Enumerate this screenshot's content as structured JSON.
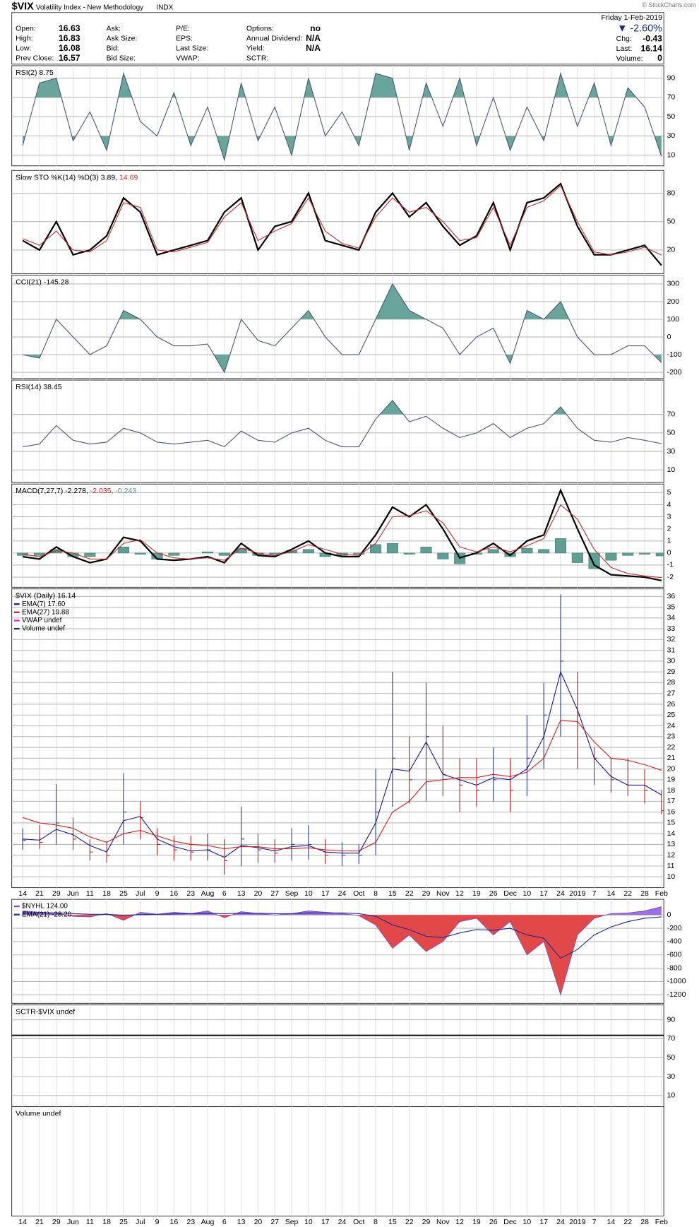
{
  "header": {
    "title": "$VIX",
    "subtitle": "Volatility Index - New Methodology",
    "exchange": "INDX",
    "watermark": "© StockCharts.com",
    "date": "Friday  1-Feb-2019",
    "change_pct": "▼ -2.60%",
    "columns": [
      [
        {
          "label": "Open:",
          "value": "16.63"
        },
        {
          "label": "High:",
          "value": "16.83"
        },
        {
          "label": "Low:",
          "value": "16.08"
        },
        {
          "label": "Prev Close:",
          "value": "16.57"
        }
      ],
      [
        {
          "label": "Ask:"
        },
        {
          "label": "Ask Size:"
        },
        {
          "label": "Bid:"
        },
        {
          "label": "Bid Size:"
        }
      ],
      [
        {
          "label": "P/E:"
        },
        {
          "label": "EPS:"
        },
        {
          "label": "Last Size:"
        },
        {
          "label": "VWAP:"
        }
      ],
      [
        {
          "label": "Options:",
          "value": "no"
        },
        {
          "label": "Annual Dividend:",
          "value": "N/A"
        },
        {
          "label": "Yield:",
          "value": "N/A"
        },
        {
          "label": "SCTR:"
        }
      ]
    ],
    "right": [
      {
        "label": "Chg:",
        "value": "-0.43"
      },
      {
        "label": "Last:",
        "value": "16.14"
      },
      {
        "label": "Volume:",
        "value": "0"
      }
    ]
  },
  "chart_data": [
    {
      "type": "line",
      "label_parts": [
        {
          "text": "RSI(2) 8.75",
          "color": "#000000"
        }
      ],
      "ylim": [
        -1,
        103
      ],
      "yticks": [
        10,
        30,
        50,
        70,
        90
      ],
      "grid": true,
      "fill_levels": [
        30,
        70
      ],
      "fill_color": "#6aa59c",
      "series": [
        {
          "color": "#4a5878",
          "values": [
            20,
            85,
            90,
            25,
            55,
            15,
            95,
            45,
            30,
            75,
            20,
            60,
            5,
            85,
            25,
            60,
            10,
            90,
            30,
            55,
            20,
            95,
            90,
            15,
            85,
            40,
            90,
            20,
            70,
            15,
            60,
            25,
            95,
            40,
            85,
            20,
            80,
            60,
            8.75
          ]
        }
      ]
    },
    {
      "type": "line",
      "label_parts": [
        {
          "text": "Slow STO %K(14) %D(3) 3.89,",
          "color": "#000000"
        },
        {
          "text": "14.69",
          "color": "#c03030"
        }
      ],
      "ylim": [
        -5,
        104
      ],
      "yticks": [
        20,
        50,
        80
      ],
      "grid": true,
      "series": [
        {
          "color": "#000000",
          "width": 2,
          "values": [
            30,
            20,
            50,
            15,
            20,
            35,
            75,
            60,
            15,
            20,
            25,
            30,
            60,
            75,
            20,
            45,
            50,
            80,
            30,
            25,
            20,
            60,
            80,
            55,
            70,
            45,
            25,
            35,
            70,
            20,
            70,
            75,
            90,
            45,
            15,
            15,
            20,
            25,
            3.89
          ]
        },
        {
          "color": "#c03030",
          "width": 1,
          "values": [
            32,
            25,
            40,
            20,
            18,
            30,
            70,
            65,
            20,
            18,
            23,
            28,
            55,
            70,
            30,
            40,
            48,
            75,
            40,
            27,
            22,
            55,
            75,
            60,
            65,
            50,
            30,
            33,
            65,
            25,
            65,
            72,
            88,
            50,
            18,
            15,
            18,
            23,
            14.69
          ]
        }
      ]
    },
    {
      "type": "line",
      "label_parts": [
        {
          "text": "CCI(21) -145.28",
          "color": "#000000"
        }
      ],
      "ylim": [
        -235,
        349
      ],
      "yticks": [
        -200,
        -100,
        0,
        100,
        200,
        300
      ],
      "grid": true,
      "fill_levels": [
        -100,
        100
      ],
      "fill_color": "#6aa59c",
      "series": [
        {
          "color": "#4a5878",
          "values": [
            -100,
            -120,
            100,
            0,
            -100,
            -50,
            150,
            100,
            0,
            -50,
            -50,
            -40,
            -200,
            100,
            -20,
            -50,
            50,
            150,
            0,
            -100,
            -100,
            100,
            300,
            150,
            100,
            50,
            -100,
            0,
            50,
            -150,
            150,
            100,
            200,
            0,
            -100,
            -100,
            -50,
            -50,
            -145.28
          ]
        }
      ]
    },
    {
      "type": "line",
      "label_parts": [
        {
          "text": "RSI(14) 38.45",
          "color": "#000000"
        }
      ],
      "ylim": [
        -3.5,
        107
      ],
      "yticks": [
        10,
        30,
        50,
        70
      ],
      "grid": true,
      "fill_levels": [
        30,
        70
      ],
      "fill_color": "#6aa59c",
      "series": [
        {
          "color": "#4a5878",
          "values": [
            35,
            38,
            58,
            42,
            38,
            40,
            55,
            50,
            40,
            38,
            40,
            42,
            35,
            52,
            42,
            40,
            50,
            55,
            42,
            35,
            35,
            65,
            85,
            62,
            68,
            55,
            45,
            50,
            60,
            45,
            55,
            60,
            78,
            55,
            42,
            40,
            45,
            42,
            38.45
          ]
        }
      ]
    },
    {
      "type": "line",
      "label_parts": [
        {
          "text": "MACD(7,27,7) -2.278,",
          "color": "#000000"
        },
        {
          "text": "-2.035,",
          "color": "#c03030"
        },
        {
          "text": "-0.243",
          "color": "#4f9a8f"
        }
      ],
      "ylim": [
        -2.84,
        5.71
      ],
      "yticks": [
        -2,
        -1,
        0,
        1,
        2,
        3,
        4,
        5
      ],
      "grid": true,
      "series": [
        {
          "kind": "bar",
          "color": "#5f9e94",
          "values": [
            -0.2,
            -0.2,
            0.3,
            -0.3,
            -0.3,
            0,
            0.5,
            -0.1,
            -0.5,
            -0.2,
            0,
            0.1,
            -0.2,
            0.4,
            -0.2,
            -0.1,
            0.2,
            0.3,
            -0.3,
            -0.2,
            -0.1,
            0.7,
            0.8,
            -0.1,
            0.5,
            -0.5,
            -0.9,
            -0.1,
            0.3,
            -0.3,
            0.4,
            0.3,
            1.2,
            -0.8,
            -1.3,
            -0.6,
            -0.2,
            -0.1,
            -0.243
          ]
        },
        {
          "color": "#000000",
          "width": 2,
          "values": [
            -0.3,
            -0.5,
            0.5,
            -0.3,
            -0.8,
            -0.5,
            1.3,
            1,
            -0.5,
            -0.6,
            -0.5,
            -0.3,
            -0.8,
            0.8,
            -0.2,
            -0.3,
            0.3,
            1,
            0,
            -0.3,
            -0.3,
            1.5,
            3.8,
            3,
            4,
            2,
            -0.4,
            0,
            0.8,
            -0.2,
            1,
            1.5,
            5.2,
            2,
            -1,
            -1.8,
            -1.9,
            -2,
            -2.278
          ]
        },
        {
          "color": "#c03030",
          "width": 1,
          "values": [
            -0.1,
            -0.3,
            0.2,
            0,
            -0.5,
            -0.5,
            0.8,
            1.1,
            0,
            -0.4,
            -0.5,
            -0.4,
            -0.6,
            0.4,
            0,
            -0.2,
            0.1,
            0.7,
            0.3,
            -0.1,
            -0.2,
            0.8,
            3,
            3.1,
            3.5,
            2.5,
            0.5,
            0.1,
            0.5,
            0.1,
            0.6,
            1.2,
            4,
            2.8,
            0.3,
            -1.2,
            -1.7,
            -1.9,
            -2.035
          ]
        }
      ]
    },
    {
      "type": "ohlc",
      "label_parts": [
        {
          "text": "$VIX (Daily) 16.14",
          "color": "#000000"
        }
      ],
      "ylim": [
        9,
        36.7
      ],
      "yticks": [
        10,
        11,
        12,
        13,
        14,
        15,
        16,
        17,
        18,
        19,
        20,
        21,
        22,
        23,
        24,
        25,
        26,
        27,
        28,
        29,
        30,
        31,
        32,
        33,
        34,
        35,
        36
      ],
      "grid": true,
      "up_color": "#2a3f9a",
      "down_color": "#c02424",
      "categories": [
        "14",
        "21",
        "29",
        "Jun",
        "11",
        "18",
        "25",
        "Jul",
        "9",
        "16",
        "23",
        "Aug",
        "6",
        "13",
        "20",
        "27",
        "Sep",
        "10",
        "17",
        "24",
        "Oct",
        "8",
        "15",
        "22",
        "29",
        "Nov",
        "12",
        "19",
        "26",
        "Dec",
        "10",
        "17",
        "24",
        "2019",
        "7",
        "14",
        "22",
        "28",
        "Feb"
      ],
      "high": [
        14.5,
        14.8,
        18.6,
        15.5,
        13.5,
        13.3,
        19.6,
        17,
        14.5,
        13.8,
        13.8,
        14,
        13.5,
        16.5,
        14,
        13.5,
        14.5,
        14.8,
        13.5,
        13.2,
        13,
        20,
        29,
        23,
        28,
        24,
        21,
        21,
        22,
        21,
        25,
        28,
        36.2,
        29,
        22,
        21,
        21,
        20,
        18
      ],
      "low": [
        12.5,
        12.6,
        13,
        12.5,
        11.5,
        11.3,
        13,
        13.5,
        12,
        11.5,
        11.5,
        11.5,
        10.2,
        11,
        11.3,
        11.3,
        11.5,
        11.6,
        11.2,
        11,
        11.2,
        12,
        16.5,
        16.8,
        17,
        17.5,
        16,
        16.5,
        17,
        16,
        17.5,
        20,
        23,
        20,
        18.5,
        17.8,
        17.5,
        16.8,
        15.8
      ],
      "close": [
        13.4,
        13.2,
        15,
        13.5,
        12.3,
        12,
        16,
        15.5,
        13,
        12.5,
        12.3,
        12.5,
        11.5,
        13.5,
        12.5,
        12.2,
        13,
        13,
        12,
        12,
        12,
        16,
        21,
        19,
        23,
        19.5,
        18.5,
        18,
        19,
        18,
        21,
        25,
        30,
        25,
        21,
        19,
        18.5,
        18,
        16.14
      ],
      "series": [
        {
          "name": "EMA(7) 17.60",
          "color": "#1a1a8c",
          "values": [
            13.5,
            13.4,
            14.4,
            13.9,
            12.9,
            12.3,
            15.2,
            15.6,
            13.5,
            12.8,
            12.4,
            12.5,
            11.8,
            12.9,
            12.7,
            12.4,
            12.8,
            12.9,
            12.3,
            12.2,
            12.2,
            15,
            20,
            19.8,
            22.5,
            19.5,
            19,
            18.5,
            19.2,
            19,
            20,
            23,
            29,
            25.5,
            21,
            19.3,
            18.5,
            18.5,
            17.6
          ]
        },
        {
          "name": "EMA(27) 19.88",
          "color": "#cc2222",
          "values": [
            15.5,
            15,
            14.8,
            14.5,
            13.7,
            13.2,
            14,
            14.3,
            13.8,
            13.3,
            13,
            12.9,
            12.6,
            12.8,
            12.8,
            12.6,
            12.6,
            12.7,
            12.5,
            12.4,
            12.4,
            13.2,
            16,
            17,
            18.8,
            19,
            19.2,
            19.2,
            19.5,
            19.3,
            19.7,
            21,
            24.5,
            24.4,
            22.5,
            21,
            20.8,
            20.4,
            19.88
          ]
        }
      ],
      "legend_extra": [
        {
          "name": "VWAP undef",
          "color": "#e020e0"
        },
        {
          "name": "Volume undef",
          "color": "#1a2a6c"
        }
      ]
    },
    {
      "type": "area",
      "label_parts": [],
      "ylim": [
        -1329,
        235
      ],
      "yticks": [
        -1200,
        -1000,
        -800,
        -600,
        -400,
        -200,
        0
      ],
      "grid": true,
      "pos_color": "#9b70e0",
      "neg_color": "#e24848",
      "series": [
        {
          "name": "$NYHL 124.00",
          "color": "#7a50c0",
          "values": [
            60,
            40,
            30,
            -20,
            -30,
            20,
            -80,
            40,
            10,
            40,
            20,
            60,
            -40,
            50,
            20,
            0,
            20,
            60,
            40,
            20,
            -10,
            -150,
            -500,
            -300,
            -550,
            -400,
            -100,
            -50,
            -300,
            -100,
            -600,
            -400,
            -1200,
            -300,
            -50,
            20,
            30,
            60,
            124
          ]
        },
        {
          "name": "EMA(21) -28.20",
          "color": "#1a2a8c",
          "values": [
            30,
            30,
            30,
            20,
            10,
            10,
            -5,
            5,
            10,
            15,
            20,
            25,
            20,
            25,
            25,
            20,
            20,
            30,
            30,
            30,
            20,
            -20,
            -150,
            -220,
            -320,
            -340,
            -270,
            -220,
            -230,
            -200,
            -300,
            -350,
            -650,
            -520,
            -300,
            -180,
            -100,
            -50,
            -28.2
          ]
        }
      ]
    },
    {
      "type": "empty",
      "label_parts": [
        {
          "text": "SCTR-$VIX undef",
          "color": "#000000"
        }
      ],
      "ylim": [
        -1.6,
        105.7
      ],
      "yticks": [
        10,
        30,
        50,
        70,
        90
      ],
      "grid": true
    },
    {
      "type": "empty",
      "label_parts": [
        {
          "text": "Volume undef",
          "color": "#000000"
        }
      ]
    }
  ]
}
